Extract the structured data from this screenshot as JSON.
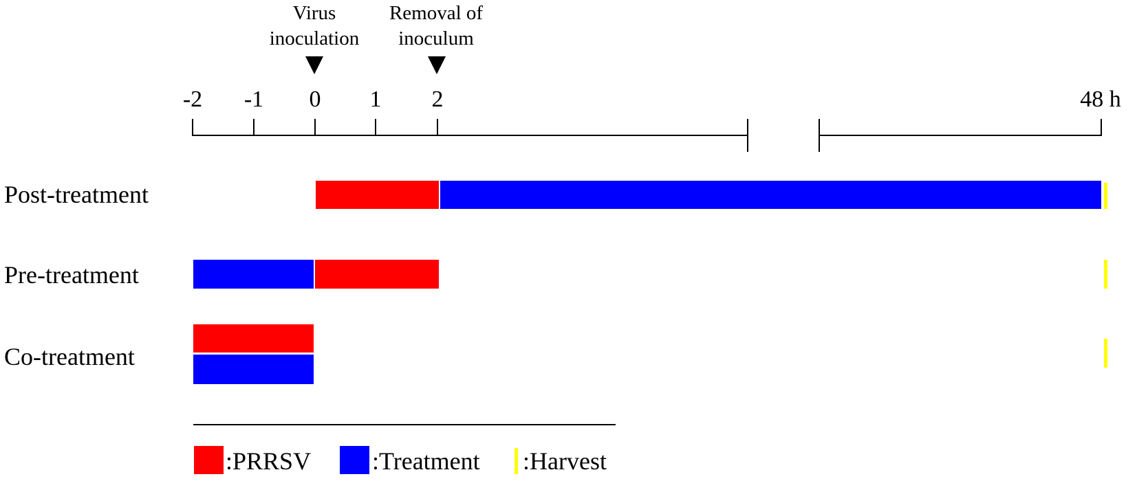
{
  "annotations": {
    "virus_inoculation": [
      "Virus",
      "inoculation"
    ],
    "removal_of_inoculum": [
      "Removal of",
      "inoculum"
    ]
  },
  "timeline": {
    "ticks": [
      "-2",
      "-1",
      "0",
      "1",
      "2",
      "48 h"
    ]
  },
  "rows": [
    {
      "label": "Post-treatment",
      "bars": [
        {
          "kind": "prrsv",
          "from": 0,
          "to": 2
        },
        {
          "kind": "treatment",
          "from": 2,
          "to": 48
        }
      ]
    },
    {
      "label": "Pre-treatment",
      "bars": [
        {
          "kind": "treatment",
          "from": -2,
          "to": 0
        },
        {
          "kind": "prrsv",
          "from": 0,
          "to": 2
        }
      ]
    },
    {
      "label": "Co-treatment",
      "bars": [
        {
          "kind": "prrsv",
          "from": -2,
          "to": 0
        },
        {
          "kind": "treatment",
          "from": -2,
          "to": 0
        }
      ]
    }
  ],
  "harvest_time": 48,
  "legend": {
    "prrsv": ":PRRSV",
    "treatment": ":Treatment",
    "harvest": ":Harvest"
  },
  "colors": {
    "prrsv": "#ff0000",
    "treatment": "#0000ff",
    "harvest": "#ffff00"
  }
}
